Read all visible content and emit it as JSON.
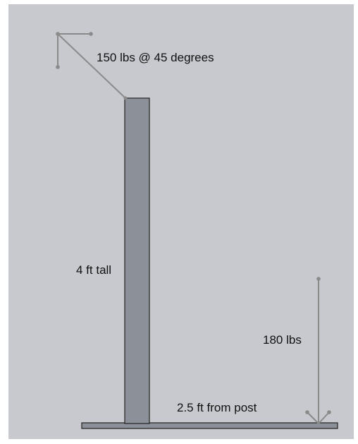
{
  "labels": {
    "force_angled": "150 lbs @ 45 degrees",
    "post_height": "4 ft tall",
    "force_vertical": "180 lbs",
    "distance": "2.5 ft from post"
  },
  "colors": {
    "panel_background": "#c7c9ce",
    "post_fill": "#8c9098",
    "outline": "#222222",
    "arrow": "#8a8a8a"
  }
}
